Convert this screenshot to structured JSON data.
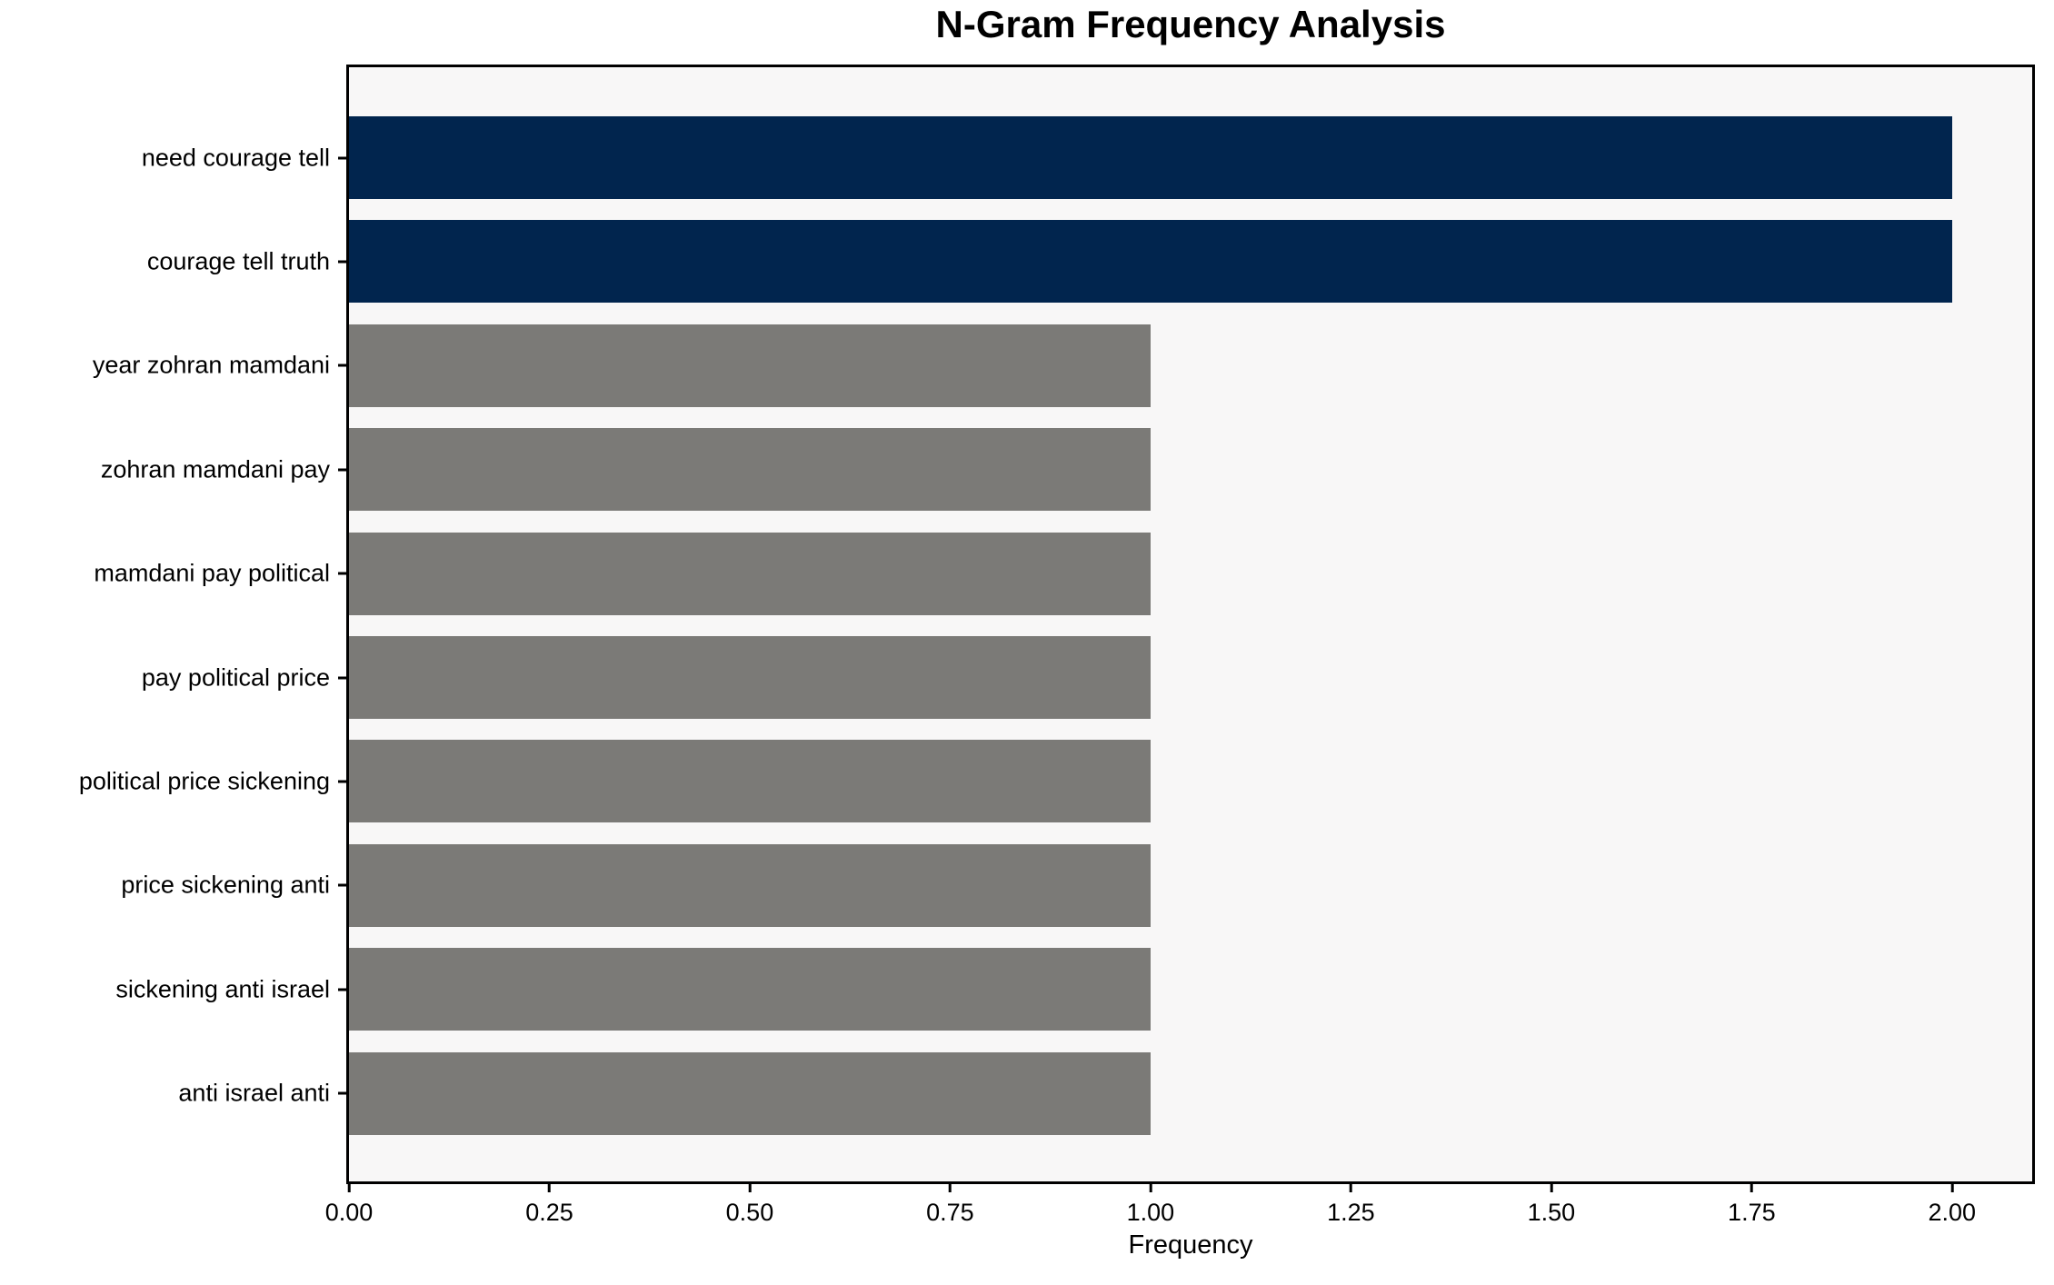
{
  "chart_data": {
    "type": "bar",
    "orientation": "horizontal",
    "title": "N-Gram Frequency Analysis",
    "xlabel": "Frequency",
    "ylabel": "",
    "categories": [
      "need courage tell",
      "courage tell truth",
      "year zohran mamdani",
      "zohran mamdani pay",
      "mamdani pay political",
      "pay political price",
      "political price sickening",
      "price sickening anti",
      "sickening anti israel",
      "anti israel anti"
    ],
    "values": [
      2,
      2,
      1,
      1,
      1,
      1,
      1,
      1,
      1,
      1
    ],
    "bar_colors": [
      "#01254e",
      "#01254e",
      "#7b7a77",
      "#7b7a77",
      "#7b7a77",
      "#7b7a77",
      "#7b7a77",
      "#7b7a77",
      "#7b7a77",
      "#7b7a77"
    ],
    "xlim": [
      0,
      2.1
    ],
    "xticks": [
      {
        "value": 0.0,
        "label": "0.00"
      },
      {
        "value": 0.25,
        "label": "0.25"
      },
      {
        "value": 0.5,
        "label": "0.50"
      },
      {
        "value": 0.75,
        "label": "0.75"
      },
      {
        "value": 1.0,
        "label": "1.00"
      },
      {
        "value": 1.25,
        "label": "1.25"
      },
      {
        "value": 1.5,
        "label": "1.50"
      },
      {
        "value": 1.75,
        "label": "1.75"
      },
      {
        "value": 2.0,
        "label": "2.00"
      }
    ],
    "grid": false,
    "legend_position": "none",
    "colors": {
      "highlight_bar": "#01254e",
      "default_bar": "#7b7a77",
      "plot_background": "#f8f7f7",
      "figure_background": "#ffffff",
      "spine": "#000000",
      "text": "#000000"
    }
  }
}
